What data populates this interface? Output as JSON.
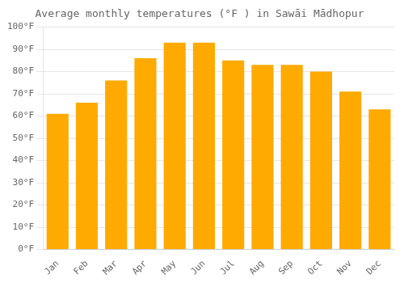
{
  "chart_data": {
    "type": "bar",
    "title": "Average monthly temperatures (°F ) in Sawāi Mādhopur",
    "categories": [
      "Jan",
      "Feb",
      "Mar",
      "Apr",
      "May",
      "Jun",
      "Jul",
      "Aug",
      "Sep",
      "Oct",
      "Nov",
      "Dec"
    ],
    "values": [
      61,
      66,
      76,
      86,
      93,
      93,
      85,
      83,
      83,
      80,
      71,
      63
    ],
    "color": "#FFAA00",
    "ylim": [
      0,
      100
    ],
    "yticks": [
      {
        "value": 0,
        "label": "0°F"
      },
      {
        "value": 10,
        "label": "10°F"
      },
      {
        "value": 20,
        "label": "20°F"
      },
      {
        "value": 30,
        "label": "30°F"
      },
      {
        "value": 40,
        "label": "40°F"
      },
      {
        "value": 50,
        "label": "50°F"
      },
      {
        "value": 60,
        "label": "60°F"
      },
      {
        "value": 70,
        "label": "70°F"
      },
      {
        "value": 80,
        "label": "80°F"
      },
      {
        "value": 90,
        "label": "90°F"
      },
      {
        "value": 100,
        "label": "100°F"
      }
    ],
    "grid": true
  }
}
